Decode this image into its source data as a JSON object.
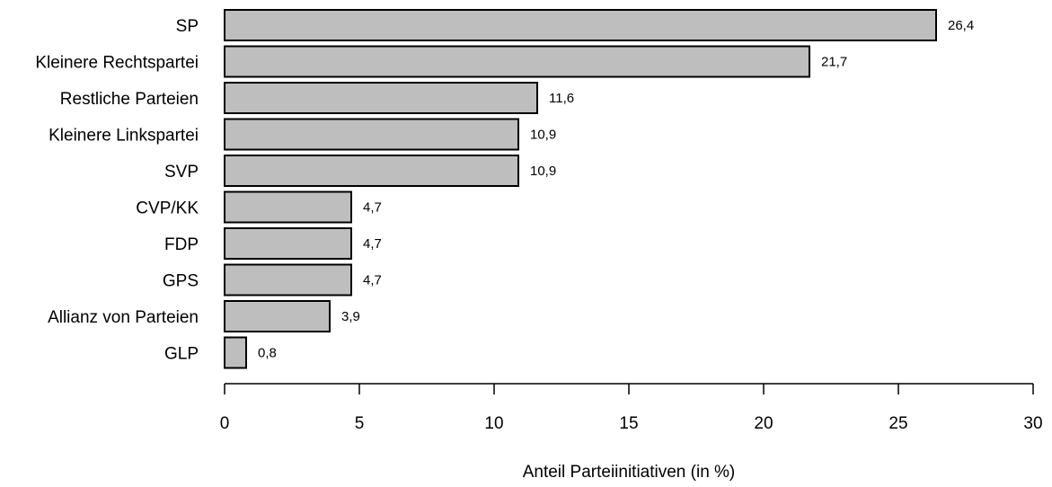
{
  "chart_data": {
    "type": "bar",
    "orientation": "horizontal",
    "categories": [
      "SP",
      "Kleinere Rechtspartei",
      "Restliche Parteien",
      "Kleinere Linkspartei",
      "SVP",
      "CVP/KK",
      "FDP",
      "GPS",
      "Allianz von Parteien",
      "GLP"
    ],
    "values": [
      26.4,
      21.7,
      11.6,
      10.9,
      10.9,
      4.7,
      4.7,
      4.7,
      3.9,
      0.8
    ],
    "value_labels": [
      "26,4",
      "21,7",
      "11,6",
      "10,9",
      "10,9",
      "4,7",
      "4,7",
      "4,7",
      "3,9",
      "0,8"
    ],
    "title": "",
    "xlabel": "Anteil Parteiinitiativen (in %)",
    "ylabel": "",
    "xlim": [
      0,
      30
    ],
    "xticks": [
      0,
      5,
      10,
      15,
      20,
      25,
      30
    ],
    "xtick_labels": [
      "0",
      "5",
      "10",
      "15",
      "20",
      "25",
      "30"
    ],
    "grid": false,
    "legend": "none",
    "bar_color": "#bebebe",
    "bar_edge_color": "#000000"
  }
}
